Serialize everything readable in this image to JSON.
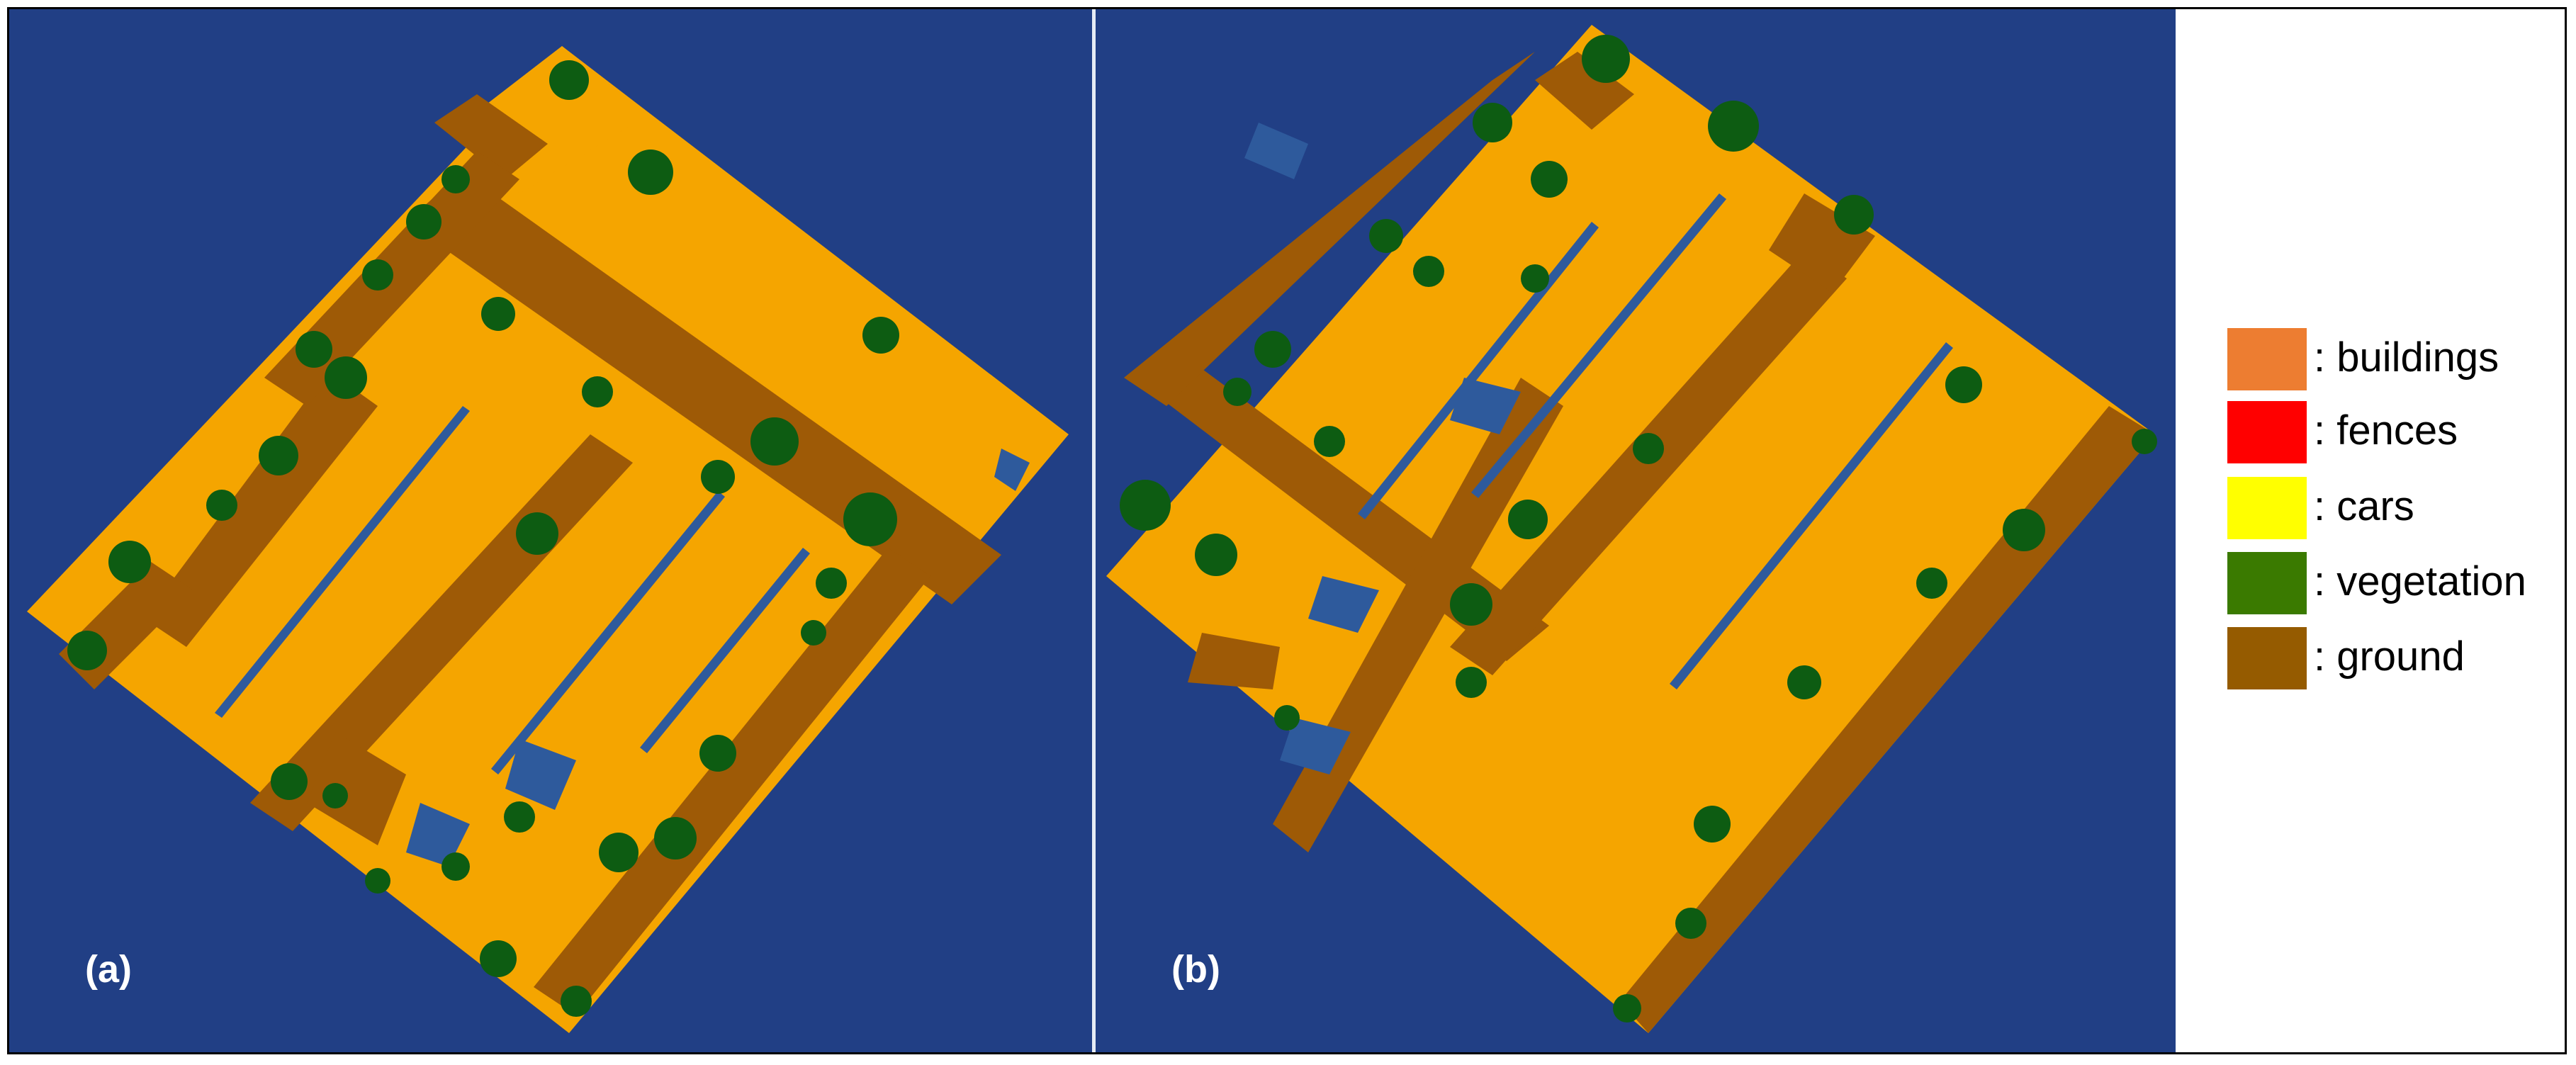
{
  "panels": [
    {
      "label": "(a)"
    },
    {
      "label": "(b)"
    }
  ],
  "legend": [
    {
      "label": ": buildings",
      "color": "#ed7d31"
    },
    {
      "label": ": fences",
      "color": "#ff0000"
    },
    {
      "label": ": cars",
      "color": "#ffff00"
    },
    {
      "label": ": vegetation",
      "color": "#3a7a00"
    },
    {
      "label": ": ground",
      "color": "#955b00"
    }
  ],
  "colors": {
    "background": "#213f85",
    "building_class_render": "#f5a500",
    "ground_render": "#9e5a06",
    "vegetation_render": "#0d5c12",
    "gap_render": "#2e5a9c"
  }
}
